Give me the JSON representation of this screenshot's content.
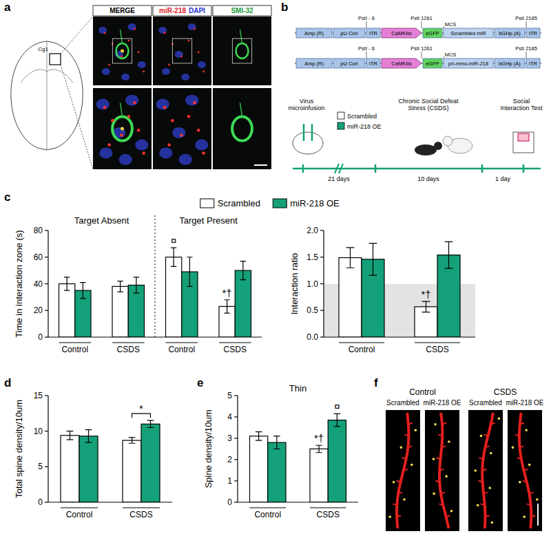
{
  "figure": {
    "letters": [
      "a",
      "b",
      "c",
      "d",
      "e",
      "f"
    ]
  },
  "panel_a": {
    "region": "Cg1",
    "headers": [
      {
        "parts": [
          {
            "text": "MERGE",
            "color": "#000000"
          }
        ]
      },
      {
        "parts": [
          {
            "text": "miR-218",
            "color": "#e0202a"
          },
          {
            "text": "DAPI",
            "color": "#2233cc"
          }
        ]
      },
      {
        "parts": [
          {
            "text": "SMI-32",
            "color": "#1a9a3a"
          }
        ]
      }
    ]
  },
  "panel_b": {
    "constructs": [
      {
        "pst_labels": [
          "PstI - 6",
          "PstI 1261",
          "PstI 2185"
        ],
        "mcs": "MCS",
        "elements": [
          "Amp (R)",
          "pU Cori",
          "ITR",
          "CaMKIIα",
          "eGFP",
          "Scrambled miR",
          "bGHp (A)",
          "ITR"
        ]
      },
      {
        "pst_labels": [
          "PstI - 6",
          "PstI 1261",
          "PstI 2185"
        ],
        "mcs": "MCS",
        "elements": [
          "Amp (R)",
          "pU Cori",
          "ITR",
          "CaMKIIα",
          "eGFP",
          "pri-mmu-miR-218",
          "bGHp (A)",
          "ITR"
        ]
      }
    ],
    "legend": [
      {
        "name": "Scrambled",
        "color": "#ffffff"
      },
      {
        "name": "miR-218 OE",
        "color": "#14a078"
      }
    ],
    "timeline": {
      "stages": [
        "Virus microinfusion",
        "Chronic Social Defeat Stress (CSDS)",
        "Social Interaction Test"
      ],
      "durations": [
        "21 days",
        "10 days",
        "1 day"
      ]
    }
  },
  "chart_data": [
    {
      "type": "bar",
      "ylabel": "Time in interaction zone (s)",
      "categories": [
        "Control",
        "CSDS",
        "Control",
        "CSDS"
      ],
      "groups": [
        "Target Absent",
        "Target Present"
      ],
      "series": [
        {
          "name": "Scrambled",
          "color": "#ffffff",
          "values": [
            40,
            38,
            60,
            23
          ],
          "errors": [
            5,
            4,
            7,
            5
          ],
          "significance": [
            null,
            null,
            "¤",
            "*†"
          ]
        },
        {
          "name": "miR-218 OE",
          "color": "#14a078",
          "values": [
            35,
            39,
            49,
            50
          ],
          "errors": [
            6,
            6,
            11,
            7
          ]
        }
      ],
      "ylim": [
        0,
        80
      ],
      "yticks": [
        0,
        20,
        40,
        60,
        80
      ],
      "legend": "top"
    },
    {
      "type": "bar",
      "ylabel": "Interaction ratio",
      "categories": [
        "Control",
        "CSDS"
      ],
      "series": [
        {
          "color": "#ffffff",
          "values": [
            1.49,
            0.57
          ],
          "errors": [
            0.19,
            0.1
          ],
          "significance": [
            null,
            "*†"
          ]
        },
        {
          "color": "#14a078",
          "values": [
            1.46,
            1.54
          ],
          "errors": [
            0.3,
            0.25
          ]
        }
      ],
      "ylim": [
        0,
        2
      ],
      "yticks": [
        {
          "value": 0,
          "label": "0.0"
        },
        {
          "value": 0.5,
          "label": "0.5"
        },
        {
          "value": 1,
          "label": "1.0"
        },
        {
          "value": 1.5,
          "label": "1.5"
        },
        {
          "value": 2,
          "label": "2.0"
        }
      ],
      "shaded_band": [
        0,
        1
      ]
    },
    {
      "type": "bar",
      "ylabel": "Total spine density/10um",
      "categories": [
        "Control",
        "CSDS"
      ],
      "series": [
        {
          "color": "#ffffff",
          "values": [
            9.4,
            8.7
          ],
          "errors": [
            0.6,
            0.4
          ]
        },
        {
          "color": "#14a078",
          "values": [
            9.3,
            11.0
          ],
          "errors": [
            0.9,
            0.5
          ]
        }
      ],
      "ylim": [
        0,
        15
      ],
      "yticks": [
        0,
        5,
        10,
        15
      ],
      "bracket": {
        "category_index": 1,
        "text": "*"
      }
    },
    {
      "type": "bar",
      "title": "Thin",
      "ylabel": "Spine density/10um",
      "categories": [
        "Control",
        "CSDS"
      ],
      "series": [
        {
          "color": "#ffffff",
          "values": [
            3.1,
            2.5
          ],
          "errors": [
            0.2,
            0.17
          ],
          "significance": [
            null,
            "*†"
          ]
        },
        {
          "color": "#14a078",
          "values": [
            2.8,
            3.85
          ],
          "errors": [
            0.3,
            0.3
          ],
          "significance": [
            null,
            "¤"
          ]
        }
      ],
      "ylim": [
        0,
        5
      ],
      "yticks": [
        0,
        1,
        2,
        3,
        4,
        5
      ]
    }
  ],
  "panel_f": {
    "groups": [
      "Control",
      "CSDS"
    ],
    "columns": [
      "Scrambled",
      "miR-218 OE",
      "Scrambled",
      "miR-218 OE"
    ]
  }
}
